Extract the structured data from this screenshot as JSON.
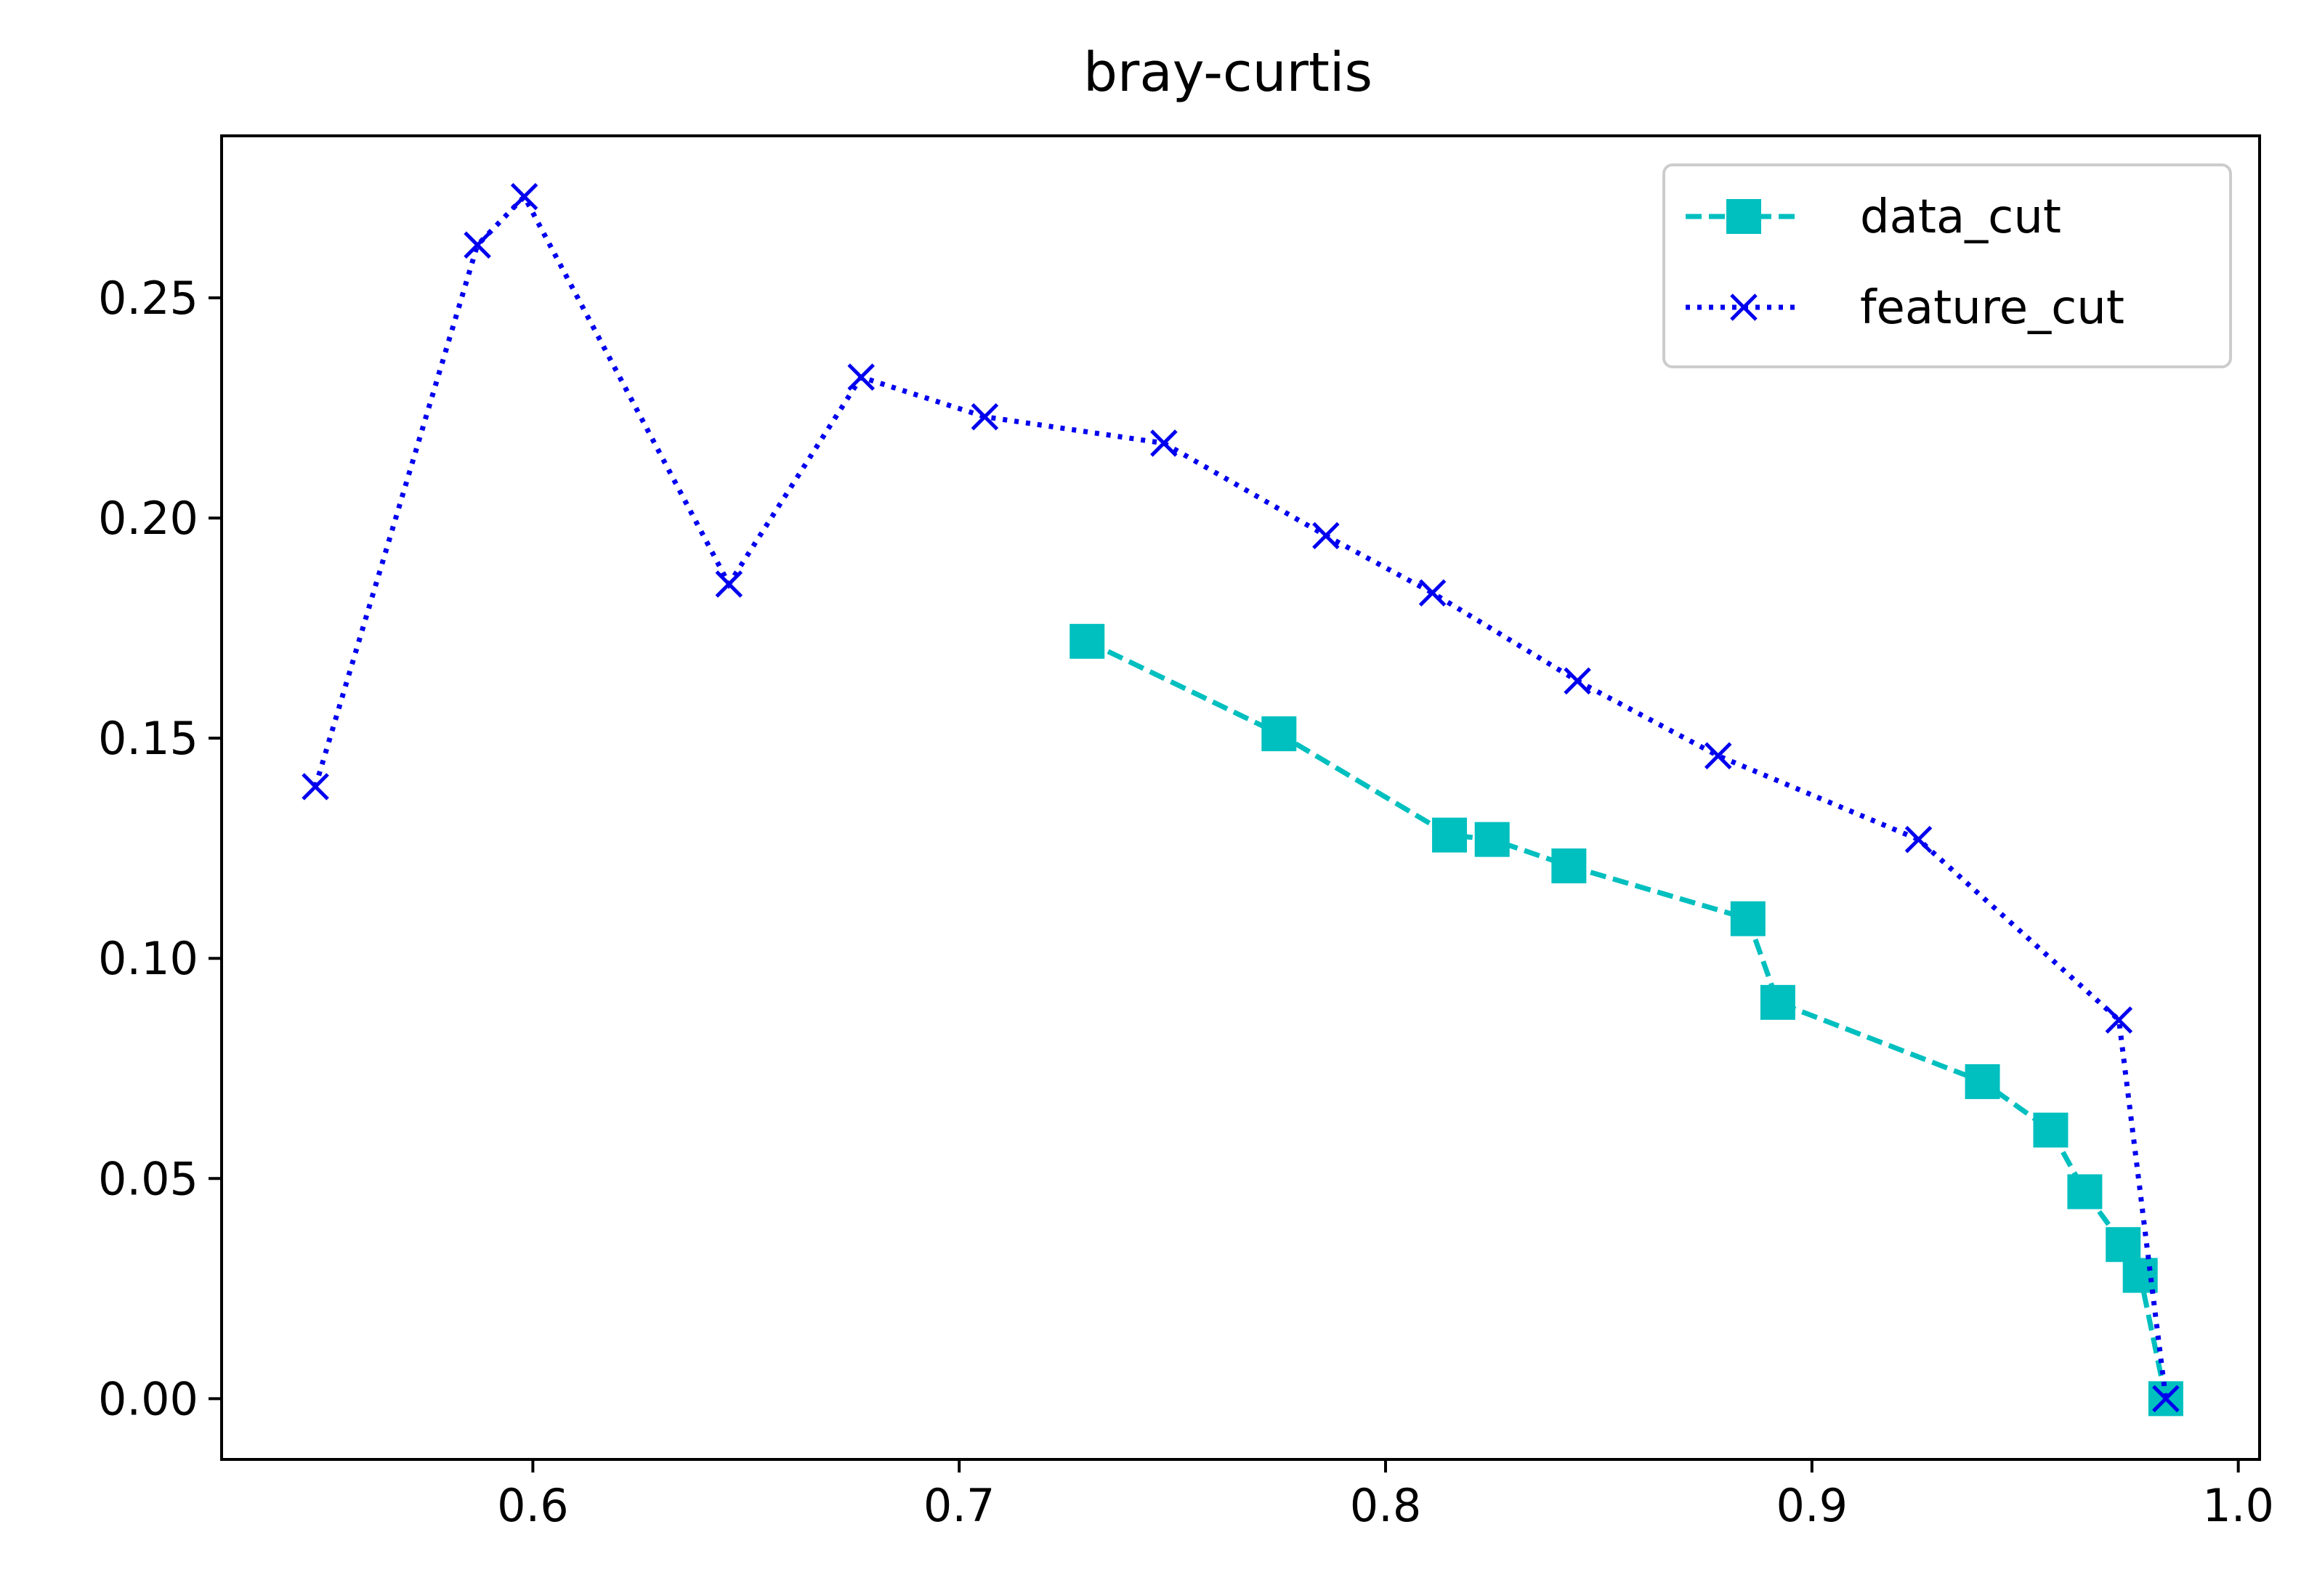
{
  "chart_data": {
    "type": "line",
    "title": "bray-curtis",
    "xlabel": "",
    "ylabel": "",
    "xlim": [
      0.527,
      1.005
    ],
    "ylim": [
      -0.0138,
      0.2868
    ],
    "x_ticks": [
      0.6,
      0.7,
      0.8,
      0.9,
      1.0
    ],
    "x_tick_labels": [
      "0.6",
      "0.7",
      "0.8",
      "0.9",
      "1.0"
    ],
    "y_ticks": [
      0.0,
      0.05,
      0.1,
      0.15,
      0.2,
      0.25
    ],
    "y_tick_labels": [
      "0.00",
      "0.05",
      "0.10",
      "0.15",
      "0.20",
      "0.25"
    ],
    "grid": false,
    "legend_position": "top-right",
    "series": [
      {
        "name": "data_cut",
        "color": "#00bfbf",
        "line_style": "dashed",
        "marker": "square",
        "x": [
          0.73,
          0.775,
          0.815,
          0.825,
          0.843,
          0.885,
          0.892,
          0.94,
          0.956,
          0.964,
          0.973,
          0.977,
          0.983
        ],
        "y": [
          0.172,
          0.151,
          0.128,
          0.127,
          0.121,
          0.109,
          0.09,
          0.072,
          0.061,
          0.047,
          0.035,
          0.028,
          0.0
        ]
      },
      {
        "name": "feature_cut",
        "color": "#0000ee",
        "line_style": "dotted",
        "marker": "x",
        "x": [
          0.549,
          0.587,
          0.598,
          0.646,
          0.677,
          0.706,
          0.748,
          0.786,
          0.811,
          0.845,
          0.878,
          0.925,
          0.972,
          0.983
        ],
        "y": [
          0.139,
          0.262,
          0.273,
          0.185,
          0.232,
          0.223,
          0.217,
          0.196,
          0.183,
          0.163,
          0.146,
          0.127,
          0.086,
          0.0
        ]
      }
    ]
  }
}
